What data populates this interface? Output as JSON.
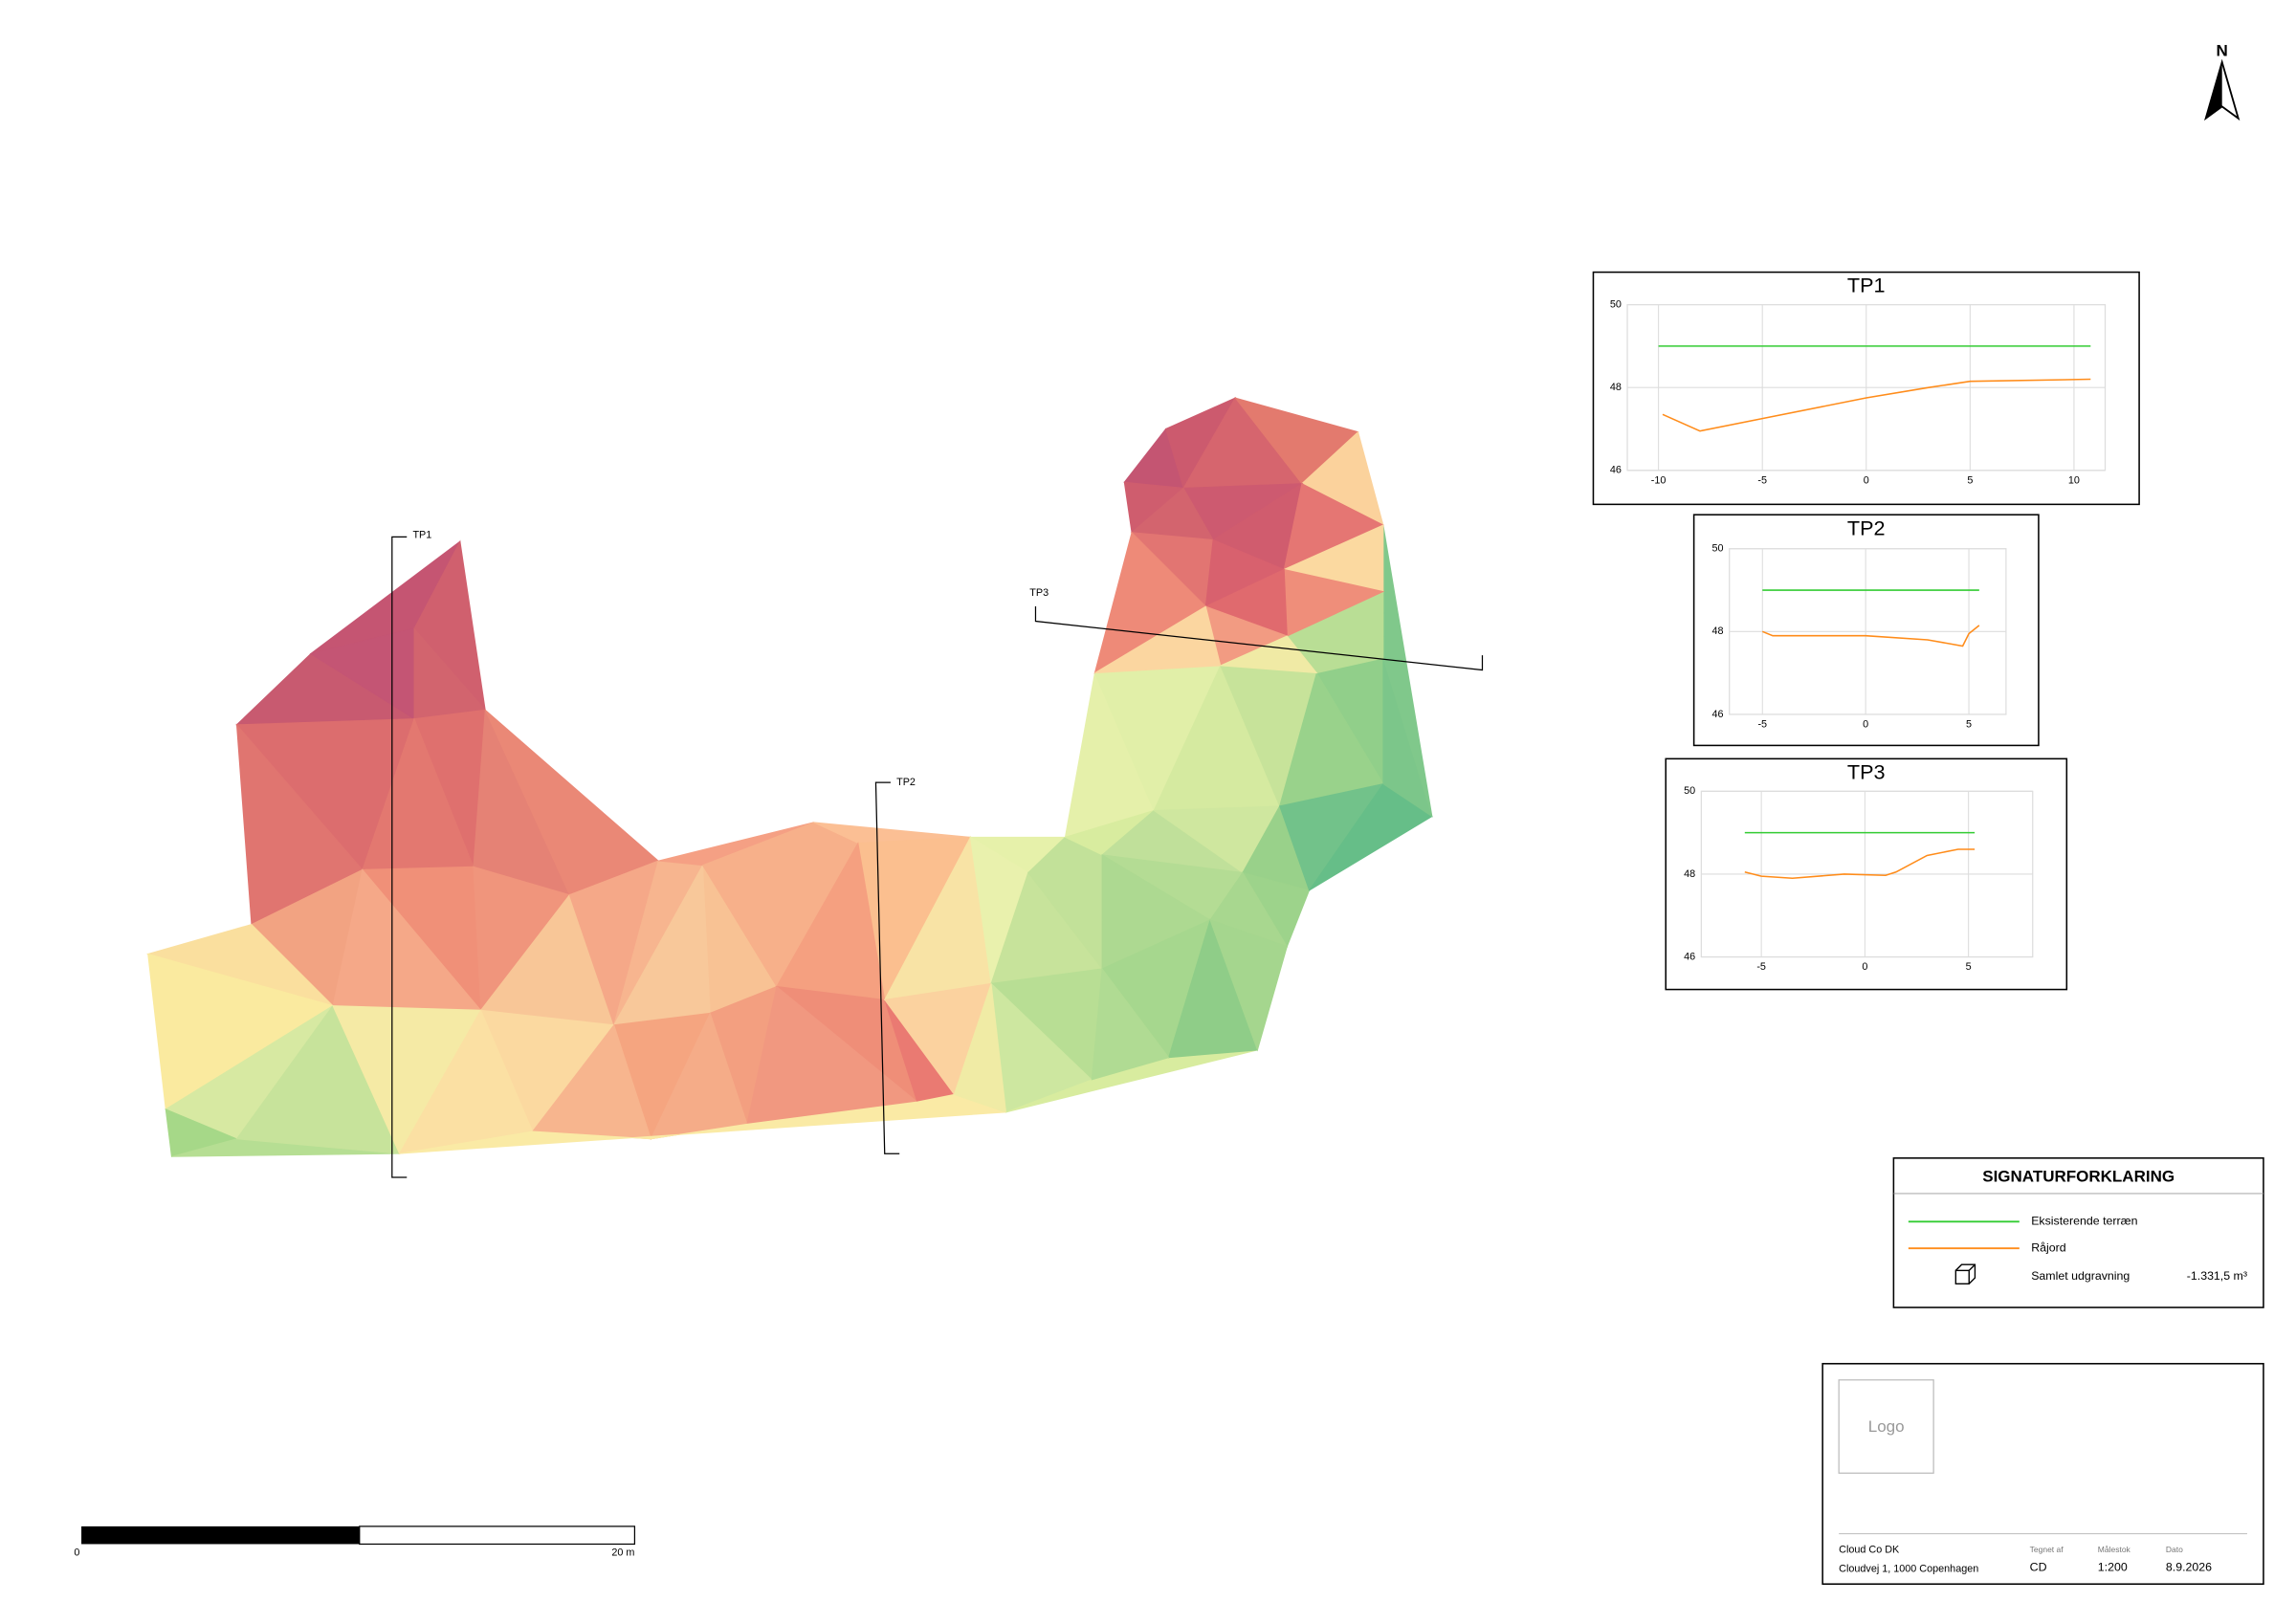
{
  "north": "N",
  "map": {
    "section_labels": [
      "TP1",
      "TP2",
      "TP3"
    ]
  },
  "scale_bar": {
    "labels": [
      "0",
      "20 m"
    ]
  },
  "chart_data": [
    {
      "type": "line",
      "title": "TP1",
      "xlim": [
        -11.5,
        11.5
      ],
      "ylim": [
        46,
        50
      ],
      "xticks": [
        -10,
        -5,
        0,
        5,
        10
      ],
      "yticks": [
        46,
        48,
        50
      ],
      "grid": true,
      "series": [
        {
          "color": "#33cc33",
          "x": [
            -10,
            10.8
          ],
          "values": [
            49,
            49
          ]
        },
        {
          "color": "#ff8c1a",
          "x": [
            -9.8,
            -8,
            -5,
            0,
            3,
            5,
            10.8
          ],
          "values": [
            47.35,
            46.95,
            47.25,
            47.75,
            48.0,
            48.15,
            48.2
          ]
        }
      ]
    },
    {
      "type": "line",
      "title": "TP2",
      "xlim": [
        -6.6,
        6.8
      ],
      "ylim": [
        46,
        50
      ],
      "xticks": [
        -5,
        0,
        5
      ],
      "yticks": [
        46,
        48,
        50
      ],
      "grid": true,
      "series": [
        {
          "color": "#33cc33",
          "x": [
            -5,
            5.5
          ],
          "values": [
            49,
            49
          ]
        },
        {
          "color": "#ff8c1a",
          "x": [
            -5,
            -4.5,
            0,
            3,
            4.7,
            5,
            5.5
          ],
          "values": [
            48,
            47.9,
            47.9,
            47.8,
            47.65,
            47.95,
            48.15
          ]
        }
      ]
    },
    {
      "type": "line",
      "title": "TP3",
      "xlim": [
        -7.9,
        8.1
      ],
      "ylim": [
        46,
        50
      ],
      "xticks": [
        -5,
        0,
        5
      ],
      "yticks": [
        46,
        48,
        50
      ],
      "grid": true,
      "series": [
        {
          "color": "#33cc33",
          "x": [
            -5.8,
            5.3
          ],
          "values": [
            49,
            49
          ]
        },
        {
          "color": "#ff8c1a",
          "x": [
            -5.8,
            -5,
            -3.5,
            -1,
            1,
            1.5,
            3,
            4.5,
            5.3
          ],
          "values": [
            48.05,
            47.95,
            47.9,
            48,
            47.97,
            48.05,
            48.45,
            48.6,
            48.6
          ]
        }
      ]
    }
  ],
  "legend": {
    "title": "SIGNATURFORKLARING",
    "items": [
      {
        "label": "Eksisterende terræn",
        "color": "#33cc33"
      },
      {
        "label": "Råjord",
        "color": "#ff8c1a"
      }
    ],
    "volume": {
      "label": "Samlet udgravning",
      "value": "-1.331,5 m³"
    }
  },
  "title_block": {
    "logo": "Logo",
    "company": "Cloud Co DK",
    "address": "Cloudvej 1, 1000 Copenhagen",
    "fields": [
      {
        "label": "Tegnet af",
        "value": "CD"
      },
      {
        "label": "Målestok",
        "value": "1:200"
      },
      {
        "label": "Dato",
        "value": "8.9.2026"
      }
    ]
  }
}
